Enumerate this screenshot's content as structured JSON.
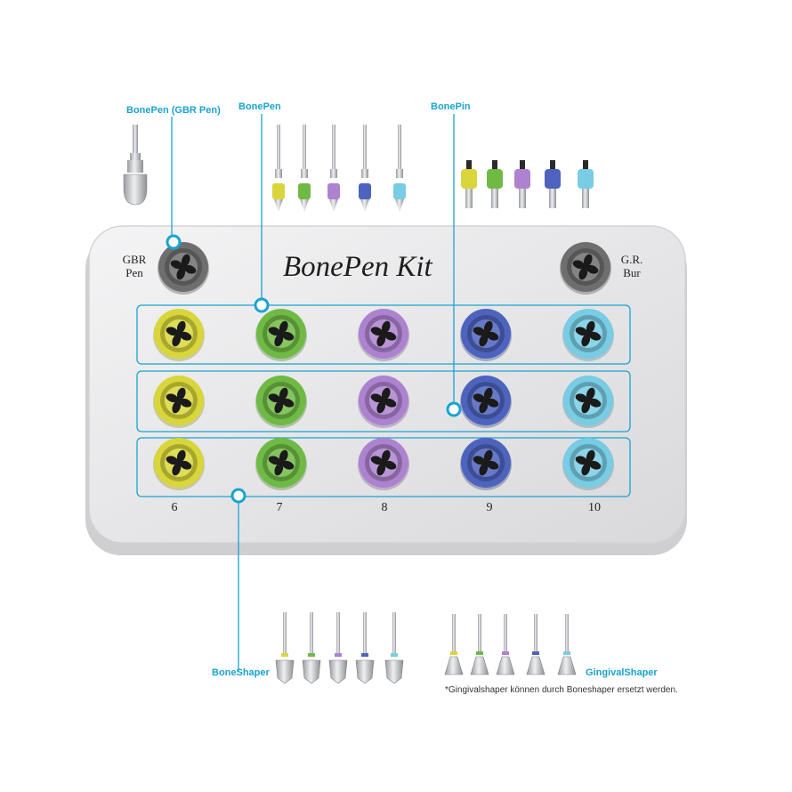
{
  "kit": {
    "title": "BonePen Kit",
    "left_label": "GBR\nPen",
    "right_label": "G.R.\nBur"
  },
  "callouts": {
    "gbr_pen": "BonePen (GBR Pen)",
    "bonepen": "BonePen",
    "bonepin": "BonePin",
    "boneshaper": "BoneShaper",
    "gingivalshaper": "GingivalShaper"
  },
  "column_numbers": [
    "6",
    "7",
    "8",
    "9",
    "10"
  ],
  "note": "*Gingivalshaper können durch Boneshaper ersetzt werden.",
  "colors": {
    "accent": "#1aa3d0",
    "tray": "#e9e9ea",
    "socket_colors": [
      "#d8d63a",
      "#6fba45",
      "#ad82cf",
      "#4d63bd",
      "#78cce3"
    ],
    "gray_socket": "#6e6e6e"
  }
}
